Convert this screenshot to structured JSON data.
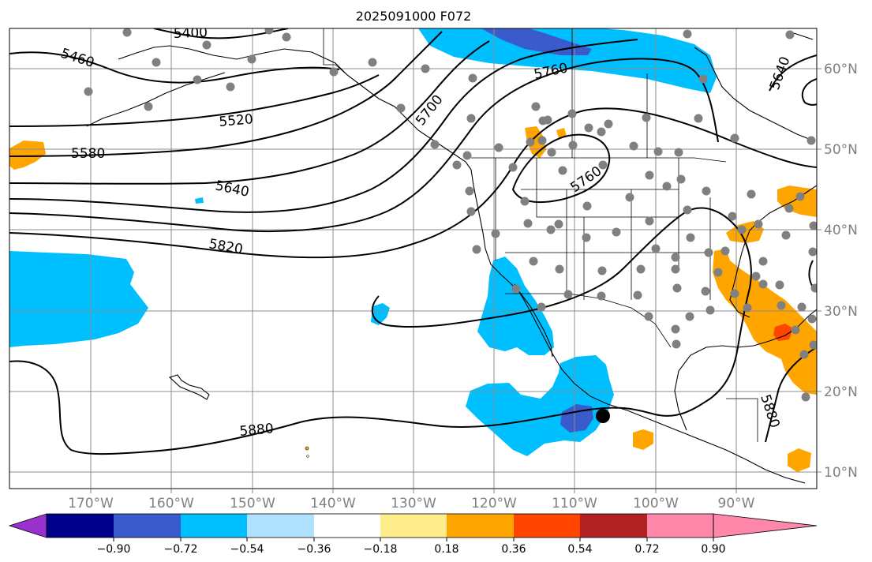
{
  "title": "2025091000 F072",
  "lon_labels": [
    "170°W",
    "160°W",
    "150°W",
    "140°W",
    "130°W",
    "120°W",
    "110°W",
    "100°W",
    "90°W"
  ],
  "lat_labels": [
    "60°N",
    "50°N",
    "40°N",
    "30°N",
    "20°N",
    "10°N"
  ],
  "contour_labels": [
    "5400",
    "5460",
    "5520",
    "5580",
    "5640",
    "5700",
    "5760",
    "5760",
    "5820",
    "5880",
    "5640",
    "5880"
  ],
  "colorbar": {
    "tick_labels": [
      "−0.90",
      "−0.72",
      "−0.54",
      "−0.36",
      "−0.18",
      "0.18",
      "0.36",
      "0.54",
      "0.72",
      "0.90"
    ],
    "colors": [
      "#9932cc",
      "#00008b",
      "#3a5bcc",
      "#00bfff",
      "#b0e2ff",
      "#ffffff",
      "#ffec8b",
      "#ffa500",
      "#ff4500",
      "#b22222",
      "#ff88aa"
    ]
  },
  "colors": {
    "negative_fill": "#00bfff",
    "strong_negative_fill": "#3a5bcc",
    "positive_fill": "#ffa500",
    "strong_positive_fill": "#ff4500",
    "station": "#808080",
    "marker": "#000000"
  }
}
